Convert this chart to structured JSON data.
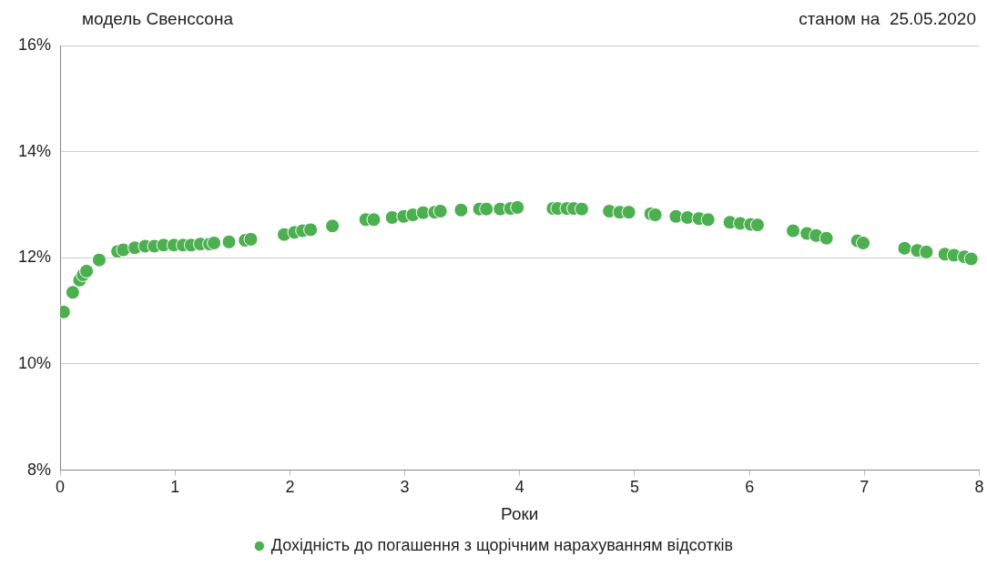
{
  "chart_data": {
    "type": "scatter",
    "title": "модель Свенссона",
    "subtitle": "станом на  25.05.2020",
    "xlabel": "Роки",
    "series": [
      {
        "name": "Дохідність до погашення з щорічним нарахуванням відсотків",
        "color": "#4caf50",
        "x": [
          0.03,
          0.11,
          0.17,
          0.2,
          0.23,
          0.34,
          0.5,
          0.55,
          0.65,
          0.74,
          0.82,
          0.9,
          0.99,
          1.07,
          1.14,
          1.22,
          1.3,
          1.34,
          1.47,
          1.61,
          1.66,
          1.95,
          2.04,
          2.11,
          2.18,
          2.37,
          2.66,
          2.73,
          2.89,
          2.99,
          3.07,
          3.16,
          3.26,
          3.31,
          3.49,
          3.65,
          3.71,
          3.83,
          3.92,
          3.98,
          4.29,
          4.33,
          4.41,
          4.47,
          4.54,
          4.78,
          4.87,
          4.95,
          5.14,
          5.18,
          5.36,
          5.46,
          5.56,
          5.64,
          5.83,
          5.92,
          6.01,
          6.07,
          6.38,
          6.5,
          6.58,
          6.67,
          6.94,
          6.99,
          7.35,
          7.46,
          7.54,
          7.7,
          7.78,
          7.87,
          7.93
        ],
        "values": [
          10.98,
          11.35,
          11.58,
          11.68,
          11.75,
          11.96,
          12.12,
          12.15,
          12.19,
          12.22,
          12.22,
          12.24,
          12.24,
          12.24,
          12.24,
          12.26,
          12.26,
          12.28,
          12.3,
          12.33,
          12.35,
          12.44,
          12.48,
          12.51,
          12.53,
          12.6,
          12.72,
          12.72,
          12.76,
          12.78,
          12.81,
          12.85,
          12.86,
          12.88,
          12.9,
          12.92,
          12.92,
          12.92,
          12.93,
          12.95,
          12.93,
          12.93,
          12.93,
          12.93,
          12.92,
          12.88,
          12.86,
          12.86,
          12.83,
          12.81,
          12.78,
          12.76,
          12.74,
          12.72,
          12.67,
          12.65,
          12.63,
          12.62,
          12.51,
          12.46,
          12.42,
          12.37,
          12.32,
          12.28,
          12.18,
          12.14,
          12.11,
          12.07,
          12.05,
          12.02,
          11.98
        ]
      }
    ],
    "xlim": [
      0,
      8
    ],
    "xticks": [
      0,
      1,
      2,
      3,
      4,
      5,
      6,
      7,
      8
    ],
    "ylim": [
      8,
      16
    ],
    "yticks": [
      {
        "value": 8,
        "label": "8%"
      },
      {
        "value": 10,
        "label": "10%"
      },
      {
        "value": 12,
        "label": "12%"
      },
      {
        "value": 14,
        "label": "14%"
      },
      {
        "value": 16,
        "label": "16%"
      }
    ],
    "grid": "y",
    "legend": "bottom",
    "marker": "circle"
  }
}
